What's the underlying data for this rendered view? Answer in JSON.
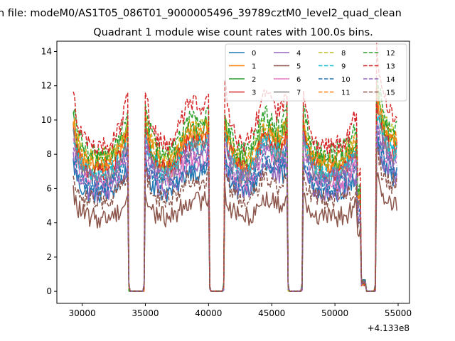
{
  "chart_data": {
    "type": "line",
    "suptitle": "n file: modeM0/AS1T05_086T01_9000005496_39789cztM0_level2_quad_clean",
    "title": "Quadrant 1 module wise count rates with 100.0s bins.",
    "xlabel": "",
    "ylabel": "",
    "x_offset_label": "+4.133e8",
    "xlim": [
      28000,
      55900
    ],
    "ylim": [
      -0.7,
      14.6
    ],
    "xticks": [
      30000,
      35000,
      40000,
      45000,
      50000,
      55000
    ],
    "xtick_labels": [
      "30000",
      "35000",
      "40000",
      "45000",
      "50000",
      "55000"
    ],
    "yticks": [
      0,
      2,
      4,
      6,
      8,
      10,
      12,
      14
    ],
    "ytick_labels": [
      "0",
      "2",
      "4",
      "6",
      "8",
      "10",
      "12",
      "14"
    ],
    "grid": false,
    "legend_position": "top-right",
    "legend_columns": 4,
    "segments": [
      [
        29300,
        33600
      ],
      [
        35000,
        40000
      ],
      [
        41300,
        46200
      ],
      [
        47500,
        52000
      ],
      [
        53300,
        54900
      ]
    ],
    "zero_gaps": [
      [
        33800,
        34900
      ],
      [
        40100,
        41200
      ],
      [
        46300,
        47400
      ],
      [
        52300,
        53200
      ]
    ],
    "series": [
      {
        "name": "0",
        "color": "#1f77b4",
        "dash": "solid",
        "level": 5.6,
        "peak": 1.9
      },
      {
        "name": "1",
        "color": "#ff7f0e",
        "dash": "solid",
        "level": 7.1,
        "peak": 2.5
      },
      {
        "name": "2",
        "color": "#2ca02c",
        "dash": "solid",
        "level": 7.3,
        "peak": 2.8
      },
      {
        "name": "3",
        "color": "#d62728",
        "dash": "solid",
        "level": 6.9,
        "peak": 2.5
      },
      {
        "name": "4",
        "color": "#9467bd",
        "dash": "solid",
        "level": 5.7,
        "peak": 2.0
      },
      {
        "name": "5",
        "color": "#8c564b",
        "dash": "solid",
        "level": 4.2,
        "peak": 1.5
      },
      {
        "name": "6",
        "color": "#e377c2",
        "dash": "solid",
        "level": 6.2,
        "peak": 2.2
      },
      {
        "name": "7",
        "color": "#7f7f7f",
        "dash": "solid",
        "level": 6.6,
        "peak": 2.3
      },
      {
        "name": "8",
        "color": "#bcbd22",
        "dash": "dashed",
        "level": 7.6,
        "peak": 2.7
      },
      {
        "name": "9",
        "color": "#17becf",
        "dash": "dashed",
        "level": 6.8,
        "peak": 2.4
      },
      {
        "name": "10",
        "color": "#1f77b4",
        "dash": "dashed",
        "level": 6.0,
        "peak": 2.1
      },
      {
        "name": "11",
        "color": "#ff7f0e",
        "dash": "dashed",
        "level": 7.4,
        "peak": 2.6
      },
      {
        "name": "12",
        "color": "#2ca02c",
        "dash": "dashed",
        "level": 7.9,
        "peak": 2.9
      },
      {
        "name": "13",
        "color": "#d62728",
        "dash": "dashed",
        "level": 8.2,
        "peak": 3.8
      },
      {
        "name": "14",
        "color": "#9467bd",
        "dash": "dashed",
        "level": 6.4,
        "peak": 2.3
      },
      {
        "name": "15",
        "color": "#8c564b",
        "dash": "dashed",
        "level": 5.2,
        "peak": 1.8
      }
    ]
  }
}
